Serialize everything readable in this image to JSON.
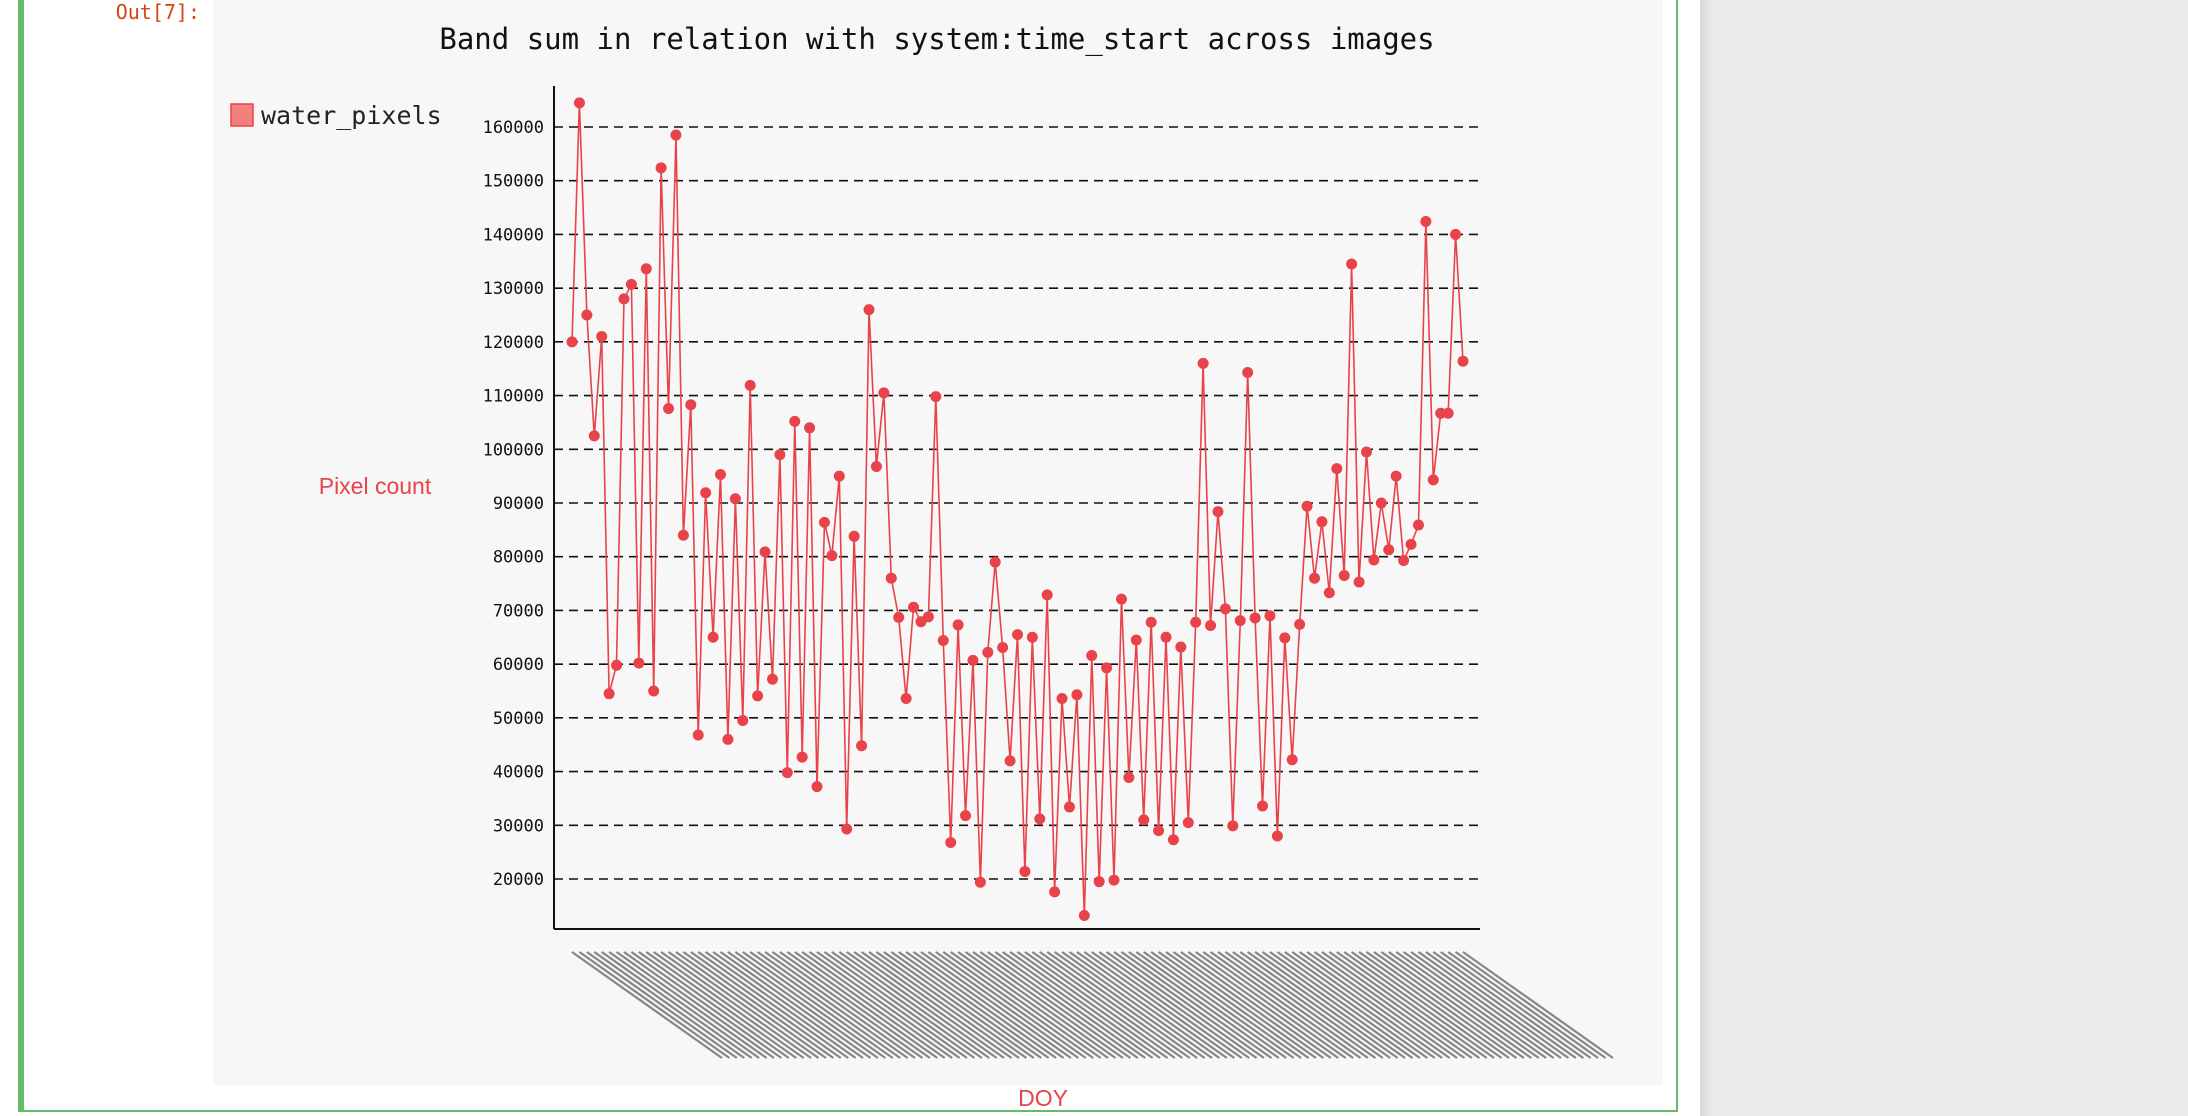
{
  "prompt": {
    "label": "Out[7]:"
  },
  "chart_data": {
    "type": "line",
    "title": "Band sum in relation with system:time_start across images",
    "xlabel": "DOY",
    "ylabel": "Pixel count",
    "ylim": [
      10000,
      168000
    ],
    "yticks": [
      20000,
      30000,
      40000,
      50000,
      60000,
      70000,
      80000,
      90000,
      100000,
      110000,
      120000,
      130000,
      140000,
      150000,
      160000
    ],
    "grid": true,
    "legend": "top-left",
    "series": [
      {
        "name": "water_pixels",
        "color": "#e8434a",
        "values": [
          120000,
          164500,
          125000,
          102500,
          121000,
          54500,
          59800,
          128000,
          130700,
          60200,
          133600,
          55000,
          152400,
          107600,
          158500,
          84000,
          108300,
          46800,
          91900,
          65000,
          95300,
          46000,
          90800,
          49500,
          111900,
          54100,
          80900,
          57200,
          99000,
          39800,
          105200,
          42700,
          104000,
          37200,
          86400,
          80200,
          95000,
          29300,
          83800,
          44800,
          126000,
          96800,
          110500,
          76000,
          68700,
          53600,
          70600,
          67900,
          68800,
          109800,
          64400,
          26800,
          67300,
          31800,
          60700,
          19400,
          62200,
          79000,
          63100,
          42000,
          65500,
          21400,
          65000,
          31200,
          72900,
          17600,
          53600,
          33400,
          54300,
          13200,
          61600,
          19500,
          59300,
          19800,
          72100,
          38900,
          64500,
          31000,
          67800,
          29000,
          65000,
          27300,
          63200,
          30500,
          67800,
          116000,
          67200,
          88400,
          70300,
          29900,
          68100,
          114300,
          68600,
          33600,
          69000,
          28000,
          64900,
          42200,
          67400,
          89400,
          76000,
          86500,
          73300,
          96400,
          76500,
          134500,
          75300,
          99500,
          79400,
          90000,
          81300,
          95000,
          79300,
          82300,
          85900,
          142400,
          94300,
          106700,
          106700,
          140000,
          116400
        ]
      }
    ],
    "x_tick_count": 121
  }
}
